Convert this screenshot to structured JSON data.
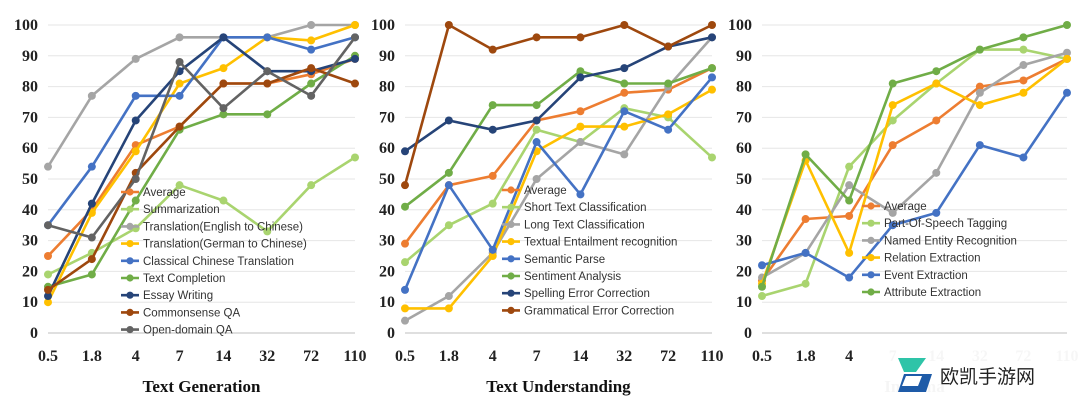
{
  "colors": {
    "orange": "#ED7D31",
    "lightgreen": "#A9D46F",
    "gray": "#A5A5A5",
    "gold": "#FFC000",
    "blue": "#4472C4",
    "green": "#70AD47",
    "navy": "#264478",
    "brown": "#9E480E",
    "darkgray": "#636363",
    "grid": "#E6E6E6",
    "axis": "#BFBFBF"
  },
  "watermark": {
    "text": "欧凯手游网",
    "icon": "logo-icon"
  },
  "chart_data": [
    {
      "type": "line",
      "title": "",
      "xlabel": "Text Generation",
      "ylabel": "",
      "categories": [
        "0.5",
        "1.8",
        "4",
        "7",
        "14",
        "32",
        "72",
        "110"
      ],
      "yticks": [
        "0",
        "10",
        "20",
        "30",
        "40",
        "50",
        "60",
        "70",
        "80",
        "90",
        "100"
      ],
      "ylim": [
        0,
        100
      ],
      "grid": true,
      "legend_position": "center-right",
      "series": [
        {
          "name": "Average",
          "color": "orange",
          "values": [
            25,
            40,
            61,
            67,
            81,
            81,
            84,
            89
          ]
        },
        {
          "name": "Summarization",
          "color": "lightgreen",
          "values": [
            19,
            26,
            34,
            48,
            43,
            33,
            48,
            57
          ]
        },
        {
          "name": "Translation(English to Chinese)",
          "color": "gray",
          "values": [
            54,
            77,
            89,
            96,
            96,
            96,
            100,
            100
          ]
        },
        {
          "name": "Translation(German to Chinese)",
          "color": "gold",
          "values": [
            10,
            39,
            59,
            81,
            86,
            96,
            95,
            100
          ]
        },
        {
          "name": "Classical Chinese Translation",
          "color": "blue",
          "values": [
            35,
            54,
            77,
            77,
            96,
            96,
            92,
            96
          ]
        },
        {
          "name": "Text Completion",
          "color": "green",
          "values": [
            15,
            19,
            43,
            66,
            71,
            71,
            81,
            90
          ]
        },
        {
          "name": "Essay Writing",
          "color": "navy",
          "values": [
            12,
            42,
            69,
            85,
            96,
            85,
            85,
            89
          ]
        },
        {
          "name": "Commonsense QA",
          "color": "brown",
          "values": [
            14,
            24,
            52,
            67,
            81,
            81,
            86,
            81
          ]
        },
        {
          "name": "Open-domain QA",
          "color": "darkgray",
          "values": [
            35,
            31,
            50,
            88,
            73,
            85,
            77,
            96
          ]
        }
      ]
    },
    {
      "type": "line",
      "title": "",
      "xlabel": "Text Understanding",
      "ylabel": "",
      "categories": [
        "0.5",
        "1.8",
        "4",
        "7",
        "14",
        "32",
        "72",
        "110"
      ],
      "yticks": [
        "0",
        "10",
        "20",
        "30",
        "40",
        "50",
        "60",
        "70",
        "80",
        "90",
        "100"
      ],
      "ylim": [
        0,
        100
      ],
      "grid": true,
      "legend_position": "center-right",
      "series": [
        {
          "name": "Average",
          "color": "orange",
          "values": [
            29,
            48,
            51,
            69,
            72,
            78,
            79,
            86
          ]
        },
        {
          "name": "Short Text Classification",
          "color": "lightgreen",
          "values": [
            23,
            35,
            42,
            66,
            62,
            73,
            70,
            57
          ]
        },
        {
          "name": "Long Text Classification",
          "color": "gray",
          "values": [
            4,
            12,
            26,
            50,
            62,
            58,
            80,
            96
          ]
        },
        {
          "name": "Textual Entailment recognition",
          "color": "gold",
          "values": [
            8,
            8,
            25,
            59,
            67,
            67,
            71,
            79
          ]
        },
        {
          "name": "Semantic Parse",
          "color": "blue",
          "values": [
            14,
            48,
            27,
            62,
            45,
            72,
            66,
            83
          ]
        },
        {
          "name": "Sentiment Analysis",
          "color": "green",
          "values": [
            41,
            52,
            74,
            74,
            85,
            81,
            81,
            86
          ]
        },
        {
          "name": "Spelling Error Correction",
          "color": "navy",
          "values": [
            59,
            69,
            66,
            69,
            83,
            86,
            93,
            96
          ]
        },
        {
          "name": "Grammatical Error Correction",
          "color": "brown",
          "values": [
            48,
            100,
            92,
            96,
            96,
            100,
            93,
            100
          ]
        }
      ]
    },
    {
      "type": "line",
      "title": "",
      "xlabel": "Informa",
      "ylabel": "",
      "categories": [
        "0.5",
        "1.8",
        "4",
        "7",
        "14",
        "32",
        "72",
        "110"
      ],
      "yticks": [
        "0",
        "10",
        "20",
        "30",
        "40",
        "50",
        "60",
        "70",
        "80",
        "90",
        "100"
      ],
      "ylim": [
        0,
        100
      ],
      "grid": true,
      "legend_position": "center-right",
      "series": [
        {
          "name": "Average",
          "color": "orange",
          "values": [
            17,
            37,
            38,
            61,
            69,
            80,
            82,
            89
          ]
        },
        {
          "name": "Part-Of-Speech Tagging",
          "color": "lightgreen",
          "values": [
            12,
            16,
            54,
            69,
            81,
            92,
            92,
            89
          ]
        },
        {
          "name": "Named Entity Recognition",
          "color": "gray",
          "values": [
            18,
            26,
            48,
            39,
            52,
            78,
            87,
            91
          ]
        },
        {
          "name": "Relation Extraction",
          "color": "gold",
          "values": [
            16,
            56,
            26,
            74,
            81,
            74,
            78,
            89
          ]
        },
        {
          "name": "Event Extraction",
          "color": "blue",
          "values": [
            22,
            26,
            18,
            35,
            39,
            61,
            57,
            78
          ]
        },
        {
          "name": "Attribute Extraction",
          "color": "green",
          "values": [
            15,
            58,
            43,
            81,
            85,
            92,
            96,
            100
          ]
        }
      ]
    }
  ]
}
